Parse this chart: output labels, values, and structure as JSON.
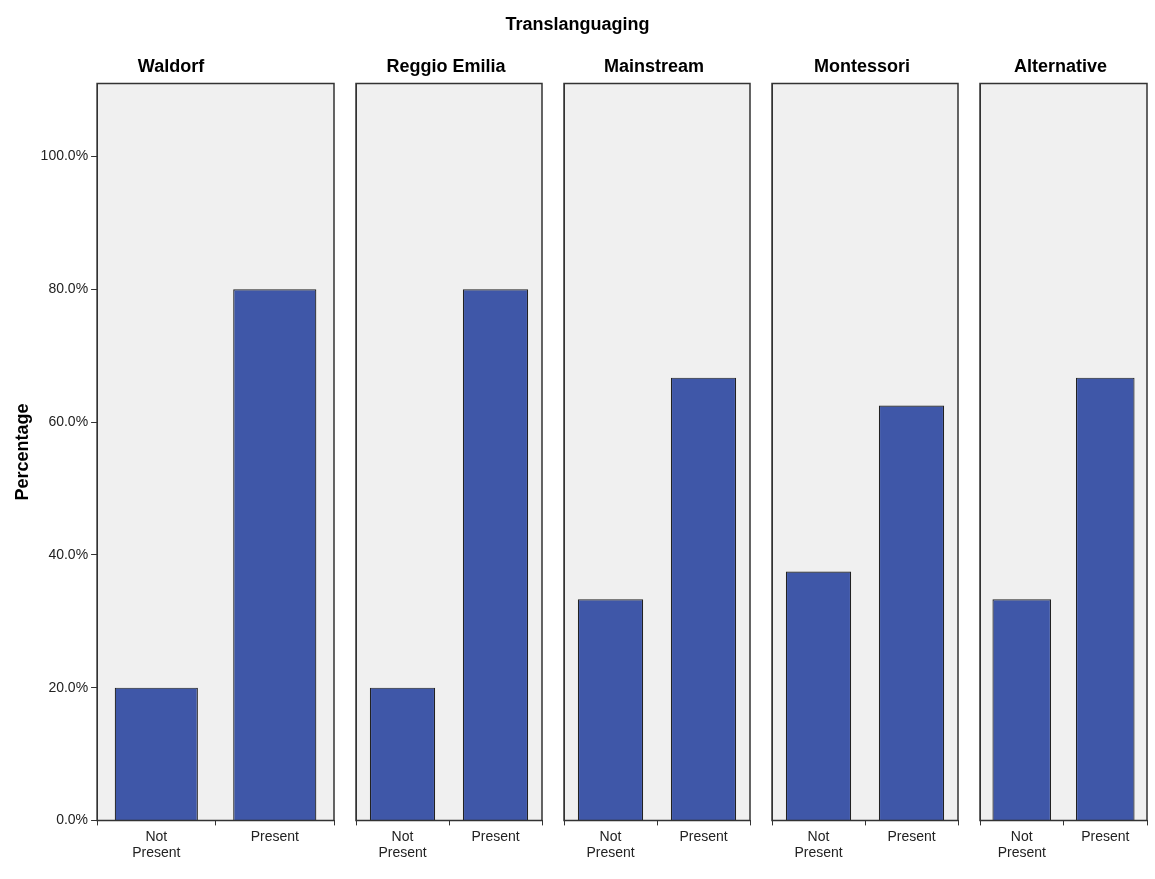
{
  "chart_data": [
    {
      "type": "bar",
      "title": "Waldorf",
      "annotations": [
        "Translanguaging"
      ],
      "ylabel": "Percentage",
      "categories": [
        "Not Present",
        "Present"
      ],
      "values": [
        20,
        80
      ],
      "color": "#3f57a8",
      "ylim": [
        0,
        111
      ],
      "yticks": [
        {
          "value": 0,
          "label": "0.0%"
        },
        {
          "value": 20,
          "label": "20.0%"
        },
        {
          "value": 40,
          "label": "40.0%"
        },
        {
          "value": 60,
          "label": "60.0%"
        },
        {
          "value": 80,
          "label": "80.0%"
        },
        {
          "value": 100,
          "label": "100.0%"
        }
      ]
    },
    {
      "type": "bar",
      "title": "Reggio Emilia",
      "categories": [
        "Not Present",
        "Present"
      ],
      "values": [
        20,
        80
      ],
      "color": "#3f57a8",
      "ylim": [
        0,
        111
      ],
      "tick_labels": "x"
    },
    {
      "type": "bar",
      "title": "Mainstream",
      "categories": [
        "Not Present",
        "Present"
      ],
      "values": [
        33.3,
        66.7
      ],
      "color": "#3f57a8",
      "ylim": [
        0,
        111
      ],
      "tick_labels": "x"
    },
    {
      "type": "bar",
      "title": "Montessori",
      "categories": [
        "Not Present",
        "Present"
      ],
      "values": [
        37.5,
        62.5
      ],
      "color": "#3f57a8",
      "ylim": [
        0,
        111
      ],
      "tick_labels": "x"
    },
    {
      "type": "bar",
      "title": "Alternative",
      "categories": [
        "Not Present",
        "Present"
      ],
      "values": [
        33.3,
        66.7
      ],
      "color": "#3f57a8",
      "ylim": [
        0,
        111
      ],
      "tick_labels": "x"
    }
  ]
}
